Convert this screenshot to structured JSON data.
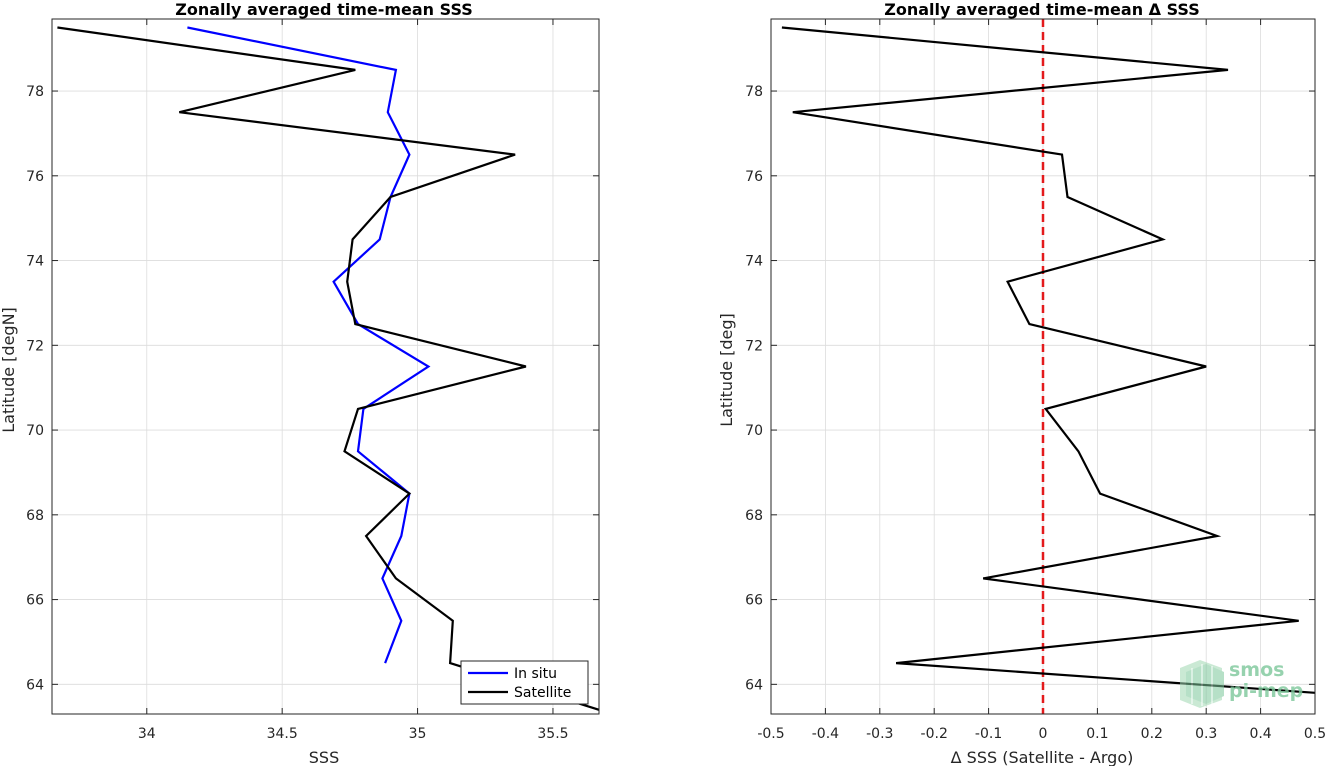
{
  "chart_data": [
    {
      "type": "line",
      "title": "Zonally averaged time-mean SSS",
      "xlabel": "SSS",
      "ylabel": "Latitude [degN]",
      "xlim": [
        33.65,
        35.67
      ],
      "ylim": [
        63.3,
        79.7
      ],
      "xticks": [
        34,
        34.5,
        35,
        35.5
      ],
      "xtick_labels": [
        "34",
        "34.5",
        "35",
        "35.5"
      ],
      "yticks": [
        64,
        66,
        68,
        70,
        72,
        74,
        76,
        78
      ],
      "ytick_labels": [
        "64",
        "66",
        "68",
        "70",
        "72",
        "74",
        "76",
        "78"
      ],
      "grid": true,
      "legend_location": "bottom-right",
      "series": [
        {
          "name": "In situ",
          "color": "#0000ff",
          "x": [
            34.15,
            34.92,
            34.89,
            34.97,
            34.9,
            34.86,
            34.69,
            34.78,
            35.04,
            34.8,
            34.78,
            34.97,
            34.94,
            34.87,
            34.94,
            34.88
          ],
          "y": [
            79.5,
            78.5,
            77.5,
            76.5,
            75.5,
            74.5,
            73.5,
            72.5,
            71.5,
            70.5,
            69.5,
            68.5,
            67.5,
            66.5,
            65.5,
            64.5
          ]
        },
        {
          "name": "Satellite",
          "color": "#000000",
          "x": [
            33.67,
            34.77,
            34.12,
            35.36,
            34.9,
            34.76,
            34.74,
            34.77,
            35.4,
            34.78,
            34.73,
            34.97,
            34.81,
            34.92,
            35.13,
            35.12,
            35.67
          ],
          "y": [
            79.5,
            78.5,
            77.5,
            76.5,
            75.5,
            74.5,
            73.5,
            72.5,
            71.5,
            70.5,
            69.5,
            68.5,
            67.5,
            66.5,
            65.5,
            64.5,
            63.4
          ]
        }
      ]
    },
    {
      "type": "line",
      "title": "Zonally averaged time-mean Δ SSS",
      "xlabel": "Δ SSS (Satellite - Argo)",
      "ylabel": "Latitude [deg]",
      "xlim": [
        -0.5,
        0.5
      ],
      "ylim": [
        63.3,
        79.7
      ],
      "xticks": [
        -0.5,
        -0.4,
        -0.3,
        -0.2,
        -0.1,
        0,
        0.1,
        0.2,
        0.3,
        0.4,
        0.5
      ],
      "xtick_labels": [
        "-0.5",
        "-0.4",
        "-0.3",
        "-0.2",
        "-0.1",
        "0",
        "0.1",
        "0.2",
        "0.3",
        "0.4",
        "0.5"
      ],
      "yticks": [
        64,
        66,
        68,
        70,
        72,
        74,
        76,
        78
      ],
      "ytick_labels": [
        "64",
        "66",
        "68",
        "70",
        "72",
        "74",
        "76",
        "78"
      ],
      "grid": true,
      "zero_line": {
        "x": 0,
        "color": "#e31a1c",
        "style": "dashed"
      },
      "series": [
        {
          "color": "#000000",
          "x": [
            -0.48,
            0.34,
            -0.46,
            0.035,
            0.045,
            0.22,
            -0.065,
            -0.025,
            0.3,
            0.005,
            0.065,
            0.105,
            0.32,
            -0.11,
            0.47,
            -0.27,
            0.5
          ],
          "y": [
            79.5,
            78.5,
            77.5,
            76.5,
            75.5,
            74.5,
            73.5,
            72.5,
            71.5,
            70.5,
            69.5,
            68.5,
            67.5,
            66.5,
            65.5,
            64.5,
            63.8
          ]
        }
      ]
    }
  ],
  "logo": {
    "line1": "smos",
    "line2": "pi-mep"
  }
}
